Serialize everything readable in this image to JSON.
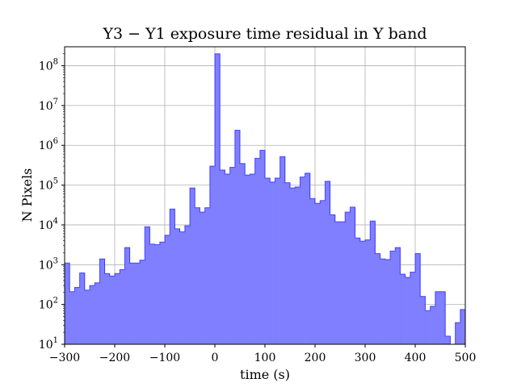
{
  "chart_data": {
    "type": "histogram",
    "title": "Y3 − Y1 exposure time residual in Y band",
    "xlabel": "time (s)",
    "ylabel": "N Pixels",
    "yscale": "log",
    "xlim": [
      -300,
      500
    ],
    "ylim": [
      10,
      300000000
    ],
    "grid": true,
    "bin_width": 10,
    "bin_start": -300,
    "bar_color": "#7f7fff",
    "edge_color": "#0000ff",
    "x_ticks": [
      {
        "value": -300,
        "label": "−300"
      },
      {
        "value": -200,
        "label": "−200"
      },
      {
        "value": -100,
        "label": "−100"
      },
      {
        "value": 0,
        "label": "0"
      },
      {
        "value": 100,
        "label": "100"
      },
      {
        "value": 200,
        "label": "200"
      },
      {
        "value": 300,
        "label": "300"
      },
      {
        "value": 400,
        "label": "400"
      },
      {
        "value": 500,
        "label": "500"
      }
    ],
    "y_ticks": [
      {
        "value": 10,
        "base": "10",
        "exp": "1"
      },
      {
        "value": 100,
        "base": "10",
        "exp": "2"
      },
      {
        "value": 1000,
        "base": "10",
        "exp": "3"
      },
      {
        "value": 10000,
        "base": "10",
        "exp": "4"
      },
      {
        "value": 100000,
        "base": "10",
        "exp": "5"
      },
      {
        "value": 1000000,
        "base": "10",
        "exp": "6"
      },
      {
        "value": 10000000,
        "base": "10",
        "exp": "7"
      },
      {
        "value": 100000000,
        "base": "10",
        "exp": "8"
      }
    ],
    "values": [
      1100,
      210,
      270,
      620,
      230,
      300,
      350,
      1400,
      600,
      520,
      600,
      750,
      2700,
      1100,
      1100,
      1300,
      9000,
      3300,
      3200,
      3700,
      5500,
      25000,
      8000,
      6700,
      9500,
      85000,
      27000,
      21000,
      27000,
      300000,
      200000000,
      240000,
      190000,
      280000,
      2400000,
      350000,
      180000,
      190000,
      470000,
      750000,
      150000,
      120000,
      150000,
      520000,
      115000,
      85000,
      90000,
      160000,
      200000,
      46000,
      35000,
      41000,
      125000,
      18000,
      12000,
      12000,
      21000,
      28000,
      4700,
      3900,
      4200,
      12500,
      1900,
      1400,
      1350,
      2200,
      2700,
      580,
      480,
      650,
      1900,
      160,
      70,
      90,
      210,
      210,
      16,
      6,
      35,
      75
    ]
  }
}
